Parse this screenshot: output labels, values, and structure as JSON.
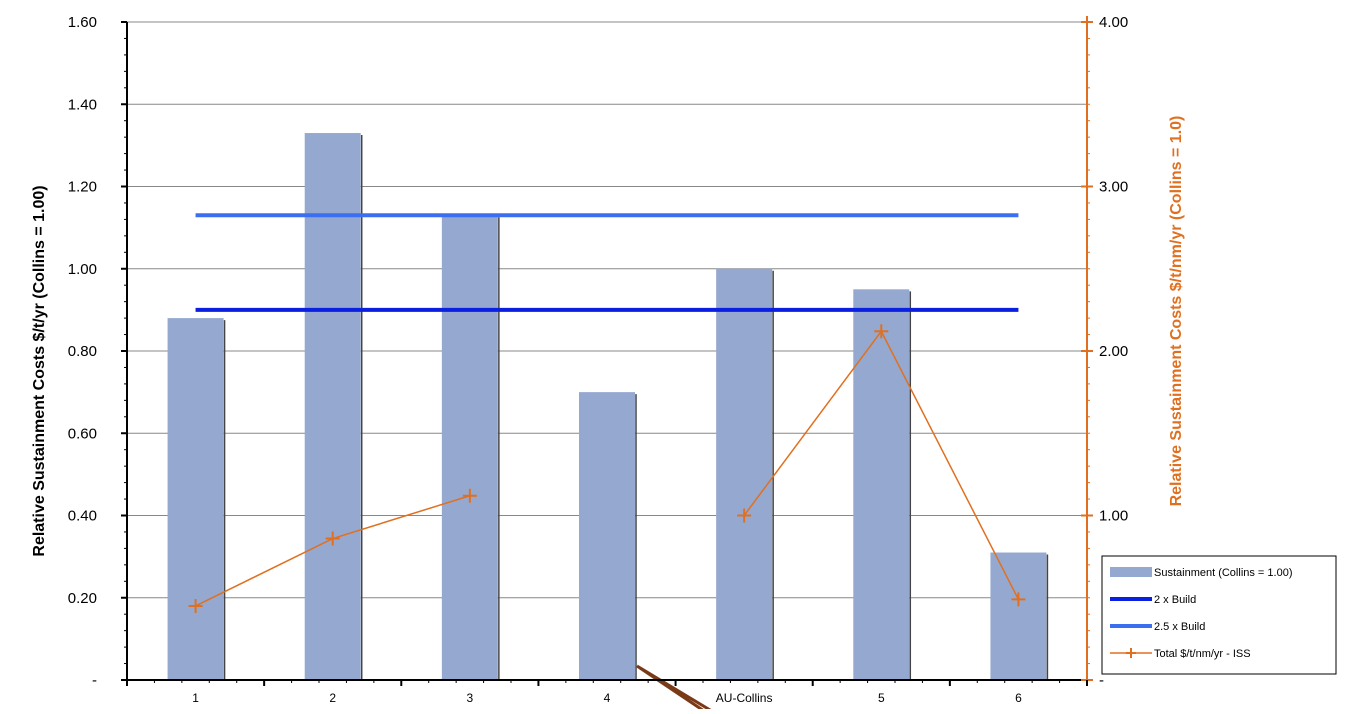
{
  "chart_data": {
    "type": "bar",
    "categories": [
      "1",
      "2",
      "3",
      "4",
      "AU-Collins",
      "5",
      "6"
    ],
    "series": [
      {
        "name": "Sustainment (Collins = 1.00)",
        "kind": "bar",
        "axis": "left",
        "color": "#95a9d0",
        "values": [
          0.88,
          1.33,
          1.13,
          0.7,
          1.0,
          0.95,
          0.31
        ]
      },
      {
        "name": "2 x Build",
        "kind": "hline",
        "axis": "left",
        "color": "#0b1fe0",
        "value": 0.9
      },
      {
        "name": "2.5 x Build",
        "kind": "hline",
        "axis": "left",
        "color": "#3b6ff0",
        "value": 1.13
      },
      {
        "name": "Total $/t/nm/yr - ISS",
        "kind": "line",
        "axis": "right",
        "color": "#e07020",
        "values": [
          0.45,
          0.86,
          1.12,
          null,
          1.0,
          2.12,
          0.49
        ]
      }
    ],
    "y_left": {
      "label": "Relative Sustainment Costs $/t/yr (Collins = 1.00)",
      "range": [
        0,
        1.6
      ],
      "ticks": [
        "-",
        "0.20",
        "0.40",
        "0.60",
        "0.80",
        "1.00",
        "1.20",
        "1.40",
        "1.60"
      ]
    },
    "y_right": {
      "label": "Relative Sustainment  Costs $/t/nm/yr (Collins = 1.0)",
      "range": [
        0,
        4
      ],
      "ticks": [
        "-",
        "1.00",
        "2.00",
        "3.00",
        "4.00"
      ],
      "color": "#e07020"
    },
    "grid": true,
    "legend_position": "bottom-right",
    "annotation_arrow_color": "#7a3a18"
  }
}
